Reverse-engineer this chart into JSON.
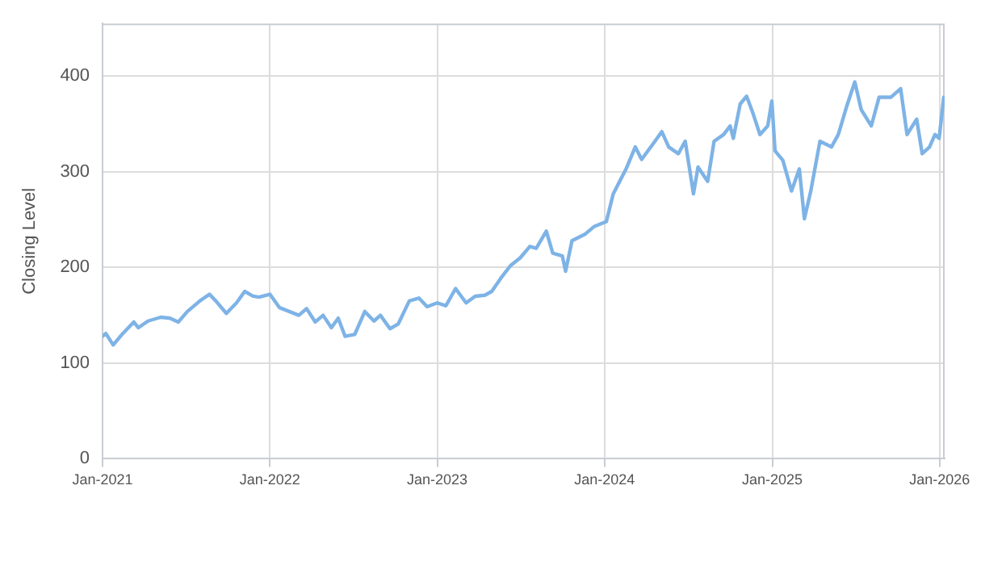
{
  "chart_data": {
    "type": "line",
    "ylabel": "Closing Level",
    "x": [
      "2021-01-01",
      "2021-01-08",
      "2021-01-24",
      "2021-02-14",
      "2021-03-10",
      "2021-03-20",
      "2021-04-10",
      "2021-05-08",
      "2021-05-28",
      "2021-06-15",
      "2021-07-05",
      "2021-08-01",
      "2021-08-22",
      "2021-09-05",
      "2021-09-28",
      "2021-10-20",
      "2021-11-07",
      "2021-11-25",
      "2021-12-08",
      "2022-01-01",
      "2022-01-22",
      "2022-02-12",
      "2022-03-05",
      "2022-03-22",
      "2022-04-10",
      "2022-04-27",
      "2022-05-15",
      "2022-05-30",
      "2022-06-14",
      "2022-07-05",
      "2022-07-27",
      "2022-08-16",
      "2022-08-30",
      "2022-09-20",
      "2022-10-08",
      "2022-11-01",
      "2022-11-22",
      "2022-12-10",
      "2023-01-01",
      "2023-01-20",
      "2023-02-10",
      "2023-03-05",
      "2023-03-25",
      "2023-04-15",
      "2023-04-30",
      "2023-05-20",
      "2023-06-10",
      "2023-07-01",
      "2023-07-22",
      "2023-08-05",
      "2023-08-27",
      "2023-09-10",
      "2023-10-01",
      "2023-10-08",
      "2023-10-22",
      "2023-11-20",
      "2023-12-10",
      "2024-01-05",
      "2024-01-20",
      "2024-02-17",
      "2024-03-08",
      "2024-03-22",
      "2024-04-20",
      "2024-05-05",
      "2024-05-20",
      "2024-06-10",
      "2024-06-25",
      "2024-07-13",
      "2024-07-23",
      "2024-08-13",
      "2024-08-27",
      "2024-09-17",
      "2024-10-01",
      "2024-10-08",
      "2024-10-23",
      "2024-11-06",
      "2024-11-20",
      "2024-12-05",
      "2024-12-22",
      "2024-12-31",
      "2025-01-07",
      "2025-01-24",
      "2025-02-12",
      "2025-03-01",
      "2025-03-12",
      "2025-03-26",
      "2025-04-15",
      "2025-05-10",
      "2025-05-25",
      "2025-06-12",
      "2025-06-30",
      "2025-07-14",
      "2025-08-05",
      "2025-08-22",
      "2025-09-17",
      "2025-10-08",
      "2025-10-22",
      "2025-11-12",
      "2025-11-24",
      "2025-12-10",
      "2025-12-22",
      "2025-12-31",
      "2026-01-10"
    ],
    "series": [
      {
        "color": "#7eb3e6",
        "values": [
          128,
          131,
          119,
          131,
          143,
          137,
          144,
          148,
          147,
          143,
          154,
          165,
          172,
          165,
          152,
          163,
          175,
          170,
          169,
          172,
          158,
          154,
          150,
          157,
          143,
          150,
          137,
          147,
          128,
          130,
          154,
          144,
          150,
          136,
          141,
          165,
          168,
          159,
          163,
          160,
          178,
          163,
          170,
          171,
          175,
          189,
          202,
          210,
          222,
          220,
          238,
          215,
          212,
          196,
          228,
          235,
          243,
          248,
          277,
          303,
          326,
          313,
          332,
          342,
          326,
          319,
          332,
          277,
          305,
          290,
          332,
          339,
          348,
          335,
          371,
          379,
          361,
          339,
          348,
          374,
          322,
          312,
          280,
          303,
          251,
          280,
          332,
          326,
          339,
          368,
          394,
          365,
          348,
          378,
          378,
          387,
          339,
          355,
          319,
          326,
          339,
          335,
          378
        ]
      }
    ],
    "xlim": [
      "2021-01-01",
      "2026-01-12"
    ],
    "xticks": [
      {
        "value": "2021-01-01",
        "label": "Jan-2021"
      },
      {
        "value": "2022-01-01",
        "label": "Jan-2022"
      },
      {
        "value": "2023-01-01",
        "label": "Jan-2023"
      },
      {
        "value": "2024-01-01",
        "label": "Jan-2024"
      },
      {
        "value": "2025-01-01",
        "label": "Jan-2025"
      },
      {
        "value": "2026-01-01",
        "label": "Jan-2026"
      }
    ],
    "ylim": [
      0,
      455
    ],
    "yticks": [
      0,
      100,
      200,
      300,
      400
    ],
    "grid": true,
    "legend": false,
    "marker": "none",
    "line_style": "solid"
  }
}
